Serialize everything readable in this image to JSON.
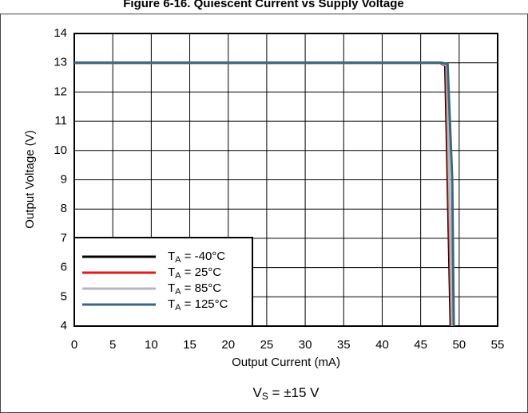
{
  "chart_data": {
    "type": "line",
    "title": "Figure 6-16. Quiescent Current vs Supply Voltage",
    "x_label": "Output Current (mA)",
    "y_label": "Output Voltage (V)",
    "annotation": "VS = ±15 V",
    "xlim": [
      0,
      55
    ],
    "xticks": [
      0,
      5,
      10,
      15,
      20,
      25,
      30,
      35,
      40,
      45,
      50,
      55
    ],
    "ylim": [
      4,
      14
    ],
    "yticks": [
      4,
      5,
      6,
      7,
      8,
      9,
      10,
      11,
      12,
      13,
      14
    ],
    "grid": true,
    "legend": "lower left",
    "series": [
      {
        "name": "TA = -40°C",
        "color": "#000000",
        "x": [
          0,
          47.5,
          48.2,
          48.9
        ],
        "values": [
          13,
          13,
          12.9,
          4
        ]
      },
      {
        "name": "TA = 25°C",
        "color": "#e01b1b",
        "x": [
          0,
          47.5,
          48.3,
          49.0
        ],
        "values": [
          13,
          13,
          12.9,
          4
        ]
      },
      {
        "name": "TA = 85°C",
        "color": "#b8b8b8",
        "x": [
          0,
          47.7,
          48.4,
          49.1
        ],
        "values": [
          13,
          13,
          12.9,
          4
        ]
      },
      {
        "name": "TA = 125°C",
        "color": "#3a6780",
        "x": [
          0,
          47.8,
          48.5,
          49.1,
          49.3
        ],
        "values": [
          13,
          13,
          12.95,
          9,
          4
        ]
      }
    ]
  }
}
